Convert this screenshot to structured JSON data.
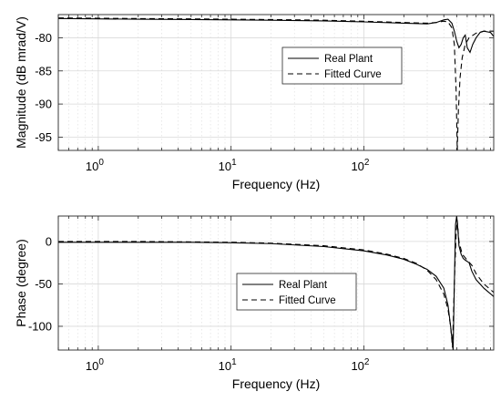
{
  "chart_data": [
    {
      "type": "line",
      "xlabel": "Frequency (Hz)",
      "ylabel": "Magnitude (dB mrad/V)",
      "xscale": "log",
      "xlim": [
        0.5,
        950
      ],
      "ylim": [
        -97,
        -76.5
      ],
      "yticks": [
        -80,
        -85,
        -90,
        -95
      ],
      "xticks": [
        1,
        10,
        100
      ],
      "xtick_labels": [
        {
          "base": "10",
          "exp": "0"
        },
        {
          "base": "10",
          "exp": "1"
        },
        {
          "base": "10",
          "exp": "2"
        }
      ],
      "grid": true,
      "legend_position": "center-right",
      "series": [
        {
          "name": "Real Plant",
          "style": "solid",
          "x": [
            0.5,
            1,
            2,
            5,
            10,
            20,
            50,
            100,
            200,
            300,
            350,
            400,
            430,
            460,
            480,
            500,
            520,
            540,
            560,
            580,
            600,
            630,
            660,
            700,
            750,
            800,
            900,
            950
          ],
          "y": [
            -77.1,
            -77.15,
            -77.2,
            -77.25,
            -77.3,
            -77.35,
            -77.45,
            -77.6,
            -77.8,
            -77.9,
            -77.7,
            -77.3,
            -77.2,
            -77.8,
            -79.0,
            -80.5,
            -81.5,
            -81.0,
            -80.0,
            -79.6,
            -81.5,
            -82.2,
            -81.0,
            -80.0,
            -79.2,
            -79.0,
            -79.2,
            -79.8
          ]
        },
        {
          "name": "Fitted Curve",
          "style": "dashed",
          "x": [
            0.5,
            1,
            2,
            5,
            10,
            20,
            50,
            100,
            200,
            300,
            350,
            400,
            430,
            460,
            480,
            495,
            505,
            515,
            530,
            550,
            580,
            620,
            700,
            800,
            950
          ],
          "y": [
            -77.0,
            -77.05,
            -77.1,
            -77.15,
            -77.2,
            -77.25,
            -77.35,
            -77.5,
            -77.7,
            -77.8,
            -77.7,
            -77.5,
            -77.6,
            -78.5,
            -81.0,
            -88.0,
            -97.0,
            -91.0,
            -86.0,
            -83.0,
            -81.0,
            -80.0,
            -79.3,
            -79.0,
            -79.0
          ]
        }
      ]
    },
    {
      "type": "line",
      "xlabel": "Frequency (Hz)",
      "ylabel": "Phase (degree)",
      "xscale": "log",
      "xlim": [
        0.5,
        950
      ],
      "ylim": [
        -128,
        30
      ],
      "yticks": [
        0,
        -50,
        -100
      ],
      "xticks": [
        1,
        10,
        100
      ],
      "xtick_labels": [
        {
          "base": "10",
          "exp": "0"
        },
        {
          "base": "10",
          "exp": "1"
        },
        {
          "base": "10",
          "exp": "2"
        }
      ],
      "grid": true,
      "legend_position": "center-left",
      "series": [
        {
          "name": "Real Plant",
          "style": "solid",
          "x": [
            0.5,
            1,
            2,
            5,
            10,
            20,
            50,
            100,
            150,
            200,
            250,
            300,
            350,
            400,
            430,
            450,
            470,
            480,
            490,
            500,
            510,
            520,
            540,
            560,
            580,
            620,
            650,
            700,
            800,
            950
          ],
          "y": [
            -1,
            -1,
            -1,
            -1,
            -1.5,
            -2.5,
            -6,
            -11,
            -16,
            -21,
            -27,
            -33,
            -41,
            -55,
            -75,
            -100,
            -128,
            -50,
            20,
            30,
            15,
            -5,
            -15,
            -20,
            -22,
            -25,
            -35,
            -45,
            -55,
            -65
          ]
        },
        {
          "name": "Fitted Curve",
          "style": "dashed",
          "x": [
            0.5,
            1,
            2,
            5,
            10,
            20,
            50,
            100,
            150,
            200,
            250,
            300,
            350,
            400,
            430,
            450,
            465,
            480,
            495,
            505,
            520,
            550,
            600,
            650,
            700,
            800,
            950
          ],
          "y": [
            0,
            0,
            0,
            -0.5,
            -1,
            -2,
            -5,
            -10,
            -15,
            -20,
            -26,
            -34,
            -45,
            -62,
            -80,
            -100,
            -125,
            -50,
            10,
            25,
            0,
            -15,
            -22,
            -28,
            -38,
            -50,
            -60
          ]
        }
      ]
    }
  ]
}
